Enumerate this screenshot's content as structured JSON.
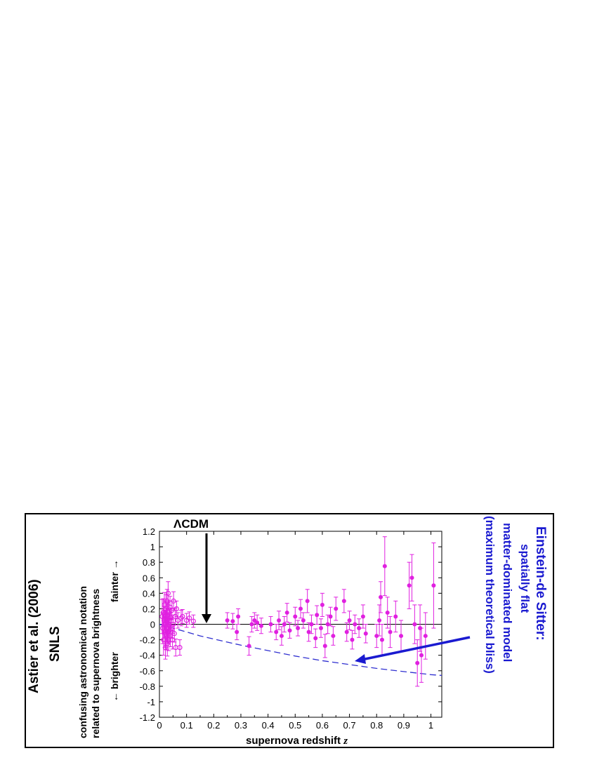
{
  "chart_data": {
    "type": "scatter",
    "title": "",
    "source_label": [
      "Astier et al. (2006)",
      "SNLS"
    ],
    "ylabel_lines": [
      "confusing astronomical notation",
      "related to supernova brightness"
    ],
    "y_direction_labels": {
      "fainter": "fainter →",
      "brighter": "← brighter"
    },
    "xlabel_prefix": "supernova redshift ",
    "xlabel_var": "z",
    "xlim": [
      0,
      1.04
    ],
    "ylim": [
      -1.2,
      1.2
    ],
    "x_ticks": [
      0,
      0.1,
      0.2,
      0.3,
      0.4,
      0.5,
      0.6,
      0.7,
      0.8,
      0.9,
      1
    ],
    "x_tick_labels": [
      "0",
      "0.1",
      "0.2",
      "0.3",
      "0.4",
      "0.5",
      "0.6",
      "0.7",
      "0.8",
      "0.9",
      "1"
    ],
    "y_ticks": [
      1.2,
      1,
      0.8,
      0.6,
      0.4,
      0.2,
      0,
      -0.2,
      -0.4,
      -0.6,
      -0.8,
      -1,
      -1.2
    ],
    "y_tick_labels": [
      "1.2",
      "1",
      "0.8",
      "0.6",
      "0.4",
      "0.2",
      "0",
      "-0.2",
      "-0.4",
      "-0.6",
      "-0.8",
      "-1",
      "-1.2"
    ],
    "grid": false,
    "colors": {
      "points": "#e020e0",
      "model_line": "#3030d0",
      "annotation_blue": "#1a1ad0",
      "annotation_black": "#000000"
    },
    "series": [
      {
        "marker": "open-circle",
        "points": [
          {
            "x": 0.01,
            "y": 0.1,
            "err": 0.22
          },
          {
            "x": 0.012,
            "y": -0.05,
            "err": 0.2
          },
          {
            "x": 0.014,
            "y": 0.15,
            "err": 0.18
          },
          {
            "x": 0.015,
            "y": -0.2,
            "err": 0.2
          },
          {
            "x": 0.017,
            "y": 0.05,
            "err": 0.18
          },
          {
            "x": 0.018,
            "y": 0.25,
            "err": 0.16
          },
          {
            "x": 0.02,
            "y": -0.1,
            "err": 0.2
          },
          {
            "x": 0.021,
            "y": 0.0,
            "err": 0.18
          },
          {
            "x": 0.022,
            "y": -0.3,
            "err": 0.15
          },
          {
            "x": 0.023,
            "y": 0.1,
            "err": 0.2
          },
          {
            "x": 0.024,
            "y": 0.2,
            "err": 0.18
          },
          {
            "x": 0.025,
            "y": -0.15,
            "err": 0.18
          },
          {
            "x": 0.026,
            "y": 0.05,
            "err": 0.16
          },
          {
            "x": 0.027,
            "y": -0.05,
            "err": 0.18
          },
          {
            "x": 0.028,
            "y": 0.3,
            "err": 0.15
          },
          {
            "x": 0.029,
            "y": -0.25,
            "err": 0.16
          },
          {
            "x": 0.03,
            "y": 0.12,
            "err": 0.16
          },
          {
            "x": 0.031,
            "y": -0.1,
            "err": 0.15
          },
          {
            "x": 0.032,
            "y": 0.4,
            "err": 0.15
          },
          {
            "x": 0.033,
            "y": 0.0,
            "err": 0.15
          },
          {
            "x": 0.034,
            "y": -0.2,
            "err": 0.14
          },
          {
            "x": 0.035,
            "y": 0.15,
            "err": 0.15
          },
          {
            "x": 0.036,
            "y": 0.05,
            "err": 0.14
          },
          {
            "x": 0.037,
            "y": -0.08,
            "err": 0.15
          },
          {
            "x": 0.039,
            "y": 0.22,
            "err": 0.14
          },
          {
            "x": 0.04,
            "y": -0.15,
            "err": 0.14
          },
          {
            "x": 0.042,
            "y": 0.08,
            "err": 0.13
          },
          {
            "x": 0.044,
            "y": -0.05,
            "err": 0.13
          },
          {
            "x": 0.046,
            "y": 0.18,
            "err": 0.12
          },
          {
            "x": 0.048,
            "y": -0.2,
            "err": 0.12
          },
          {
            "x": 0.05,
            "y": 0.0,
            "err": 0.12
          },
          {
            "x": 0.052,
            "y": 0.3,
            "err": 0.12
          },
          {
            "x": 0.055,
            "y": -0.12,
            "err": 0.11
          },
          {
            "x": 0.058,
            "y": 0.1,
            "err": 0.11
          },
          {
            "x": 0.06,
            "y": -0.3,
            "err": 0.11
          },
          {
            "x": 0.063,
            "y": 0.2,
            "err": 0.1
          },
          {
            "x": 0.068,
            "y": 0.05,
            "err": 0.1
          },
          {
            "x": 0.075,
            "y": -0.3,
            "err": 0.1
          },
          {
            "x": 0.08,
            "y": 0.08,
            "err": 0.1
          },
          {
            "x": 0.085,
            "y": 0.1,
            "err": 0.09
          },
          {
            "x": 0.1,
            "y": 0.05,
            "err": 0.09
          },
          {
            "x": 0.11,
            "y": 0.08,
            "err": 0.08
          },
          {
            "x": 0.125,
            "y": 0.04,
            "err": 0.08
          }
        ]
      },
      {
        "marker": "filled-circle",
        "points": [
          {
            "x": 0.25,
            "y": 0.05,
            "err": 0.1
          },
          {
            "x": 0.27,
            "y": 0.04,
            "err": 0.1
          },
          {
            "x": 0.285,
            "y": -0.1,
            "err": 0.1
          },
          {
            "x": 0.29,
            "y": 0.1,
            "err": 0.1
          },
          {
            "x": 0.33,
            "y": -0.28,
            "err": 0.12
          },
          {
            "x": 0.34,
            "y": 0.0,
            "err": 0.1
          },
          {
            "x": 0.35,
            "y": 0.05,
            "err": 0.1
          },
          {
            "x": 0.36,
            "y": 0.02,
            "err": 0.1
          },
          {
            "x": 0.375,
            "y": -0.02,
            "err": 0.1
          },
          {
            "x": 0.41,
            "y": 0.0,
            "err": 0.1
          },
          {
            "x": 0.43,
            "y": -0.1,
            "err": 0.1
          },
          {
            "x": 0.44,
            "y": 0.05,
            "err": 0.12
          },
          {
            "x": 0.45,
            "y": -0.15,
            "err": 0.12
          },
          {
            "x": 0.46,
            "y": 0.0,
            "err": 0.1
          },
          {
            "x": 0.47,
            "y": 0.15,
            "err": 0.12
          },
          {
            "x": 0.48,
            "y": -0.08,
            "err": 0.1
          },
          {
            "x": 0.5,
            "y": 0.1,
            "err": 0.12
          },
          {
            "x": 0.51,
            "y": -0.05,
            "err": 0.1
          },
          {
            "x": 0.52,
            "y": 0.2,
            "err": 0.12
          },
          {
            "x": 0.53,
            "y": 0.05,
            "err": 0.1
          },
          {
            "x": 0.545,
            "y": 0.3,
            "err": 0.15
          },
          {
            "x": 0.55,
            "y": -0.1,
            "err": 0.12
          },
          {
            "x": 0.56,
            "y": 0.0,
            "err": 0.12
          },
          {
            "x": 0.575,
            "y": -0.18,
            "err": 0.12
          },
          {
            "x": 0.58,
            "y": 0.12,
            "err": 0.12
          },
          {
            "x": 0.595,
            "y": -0.05,
            "err": 0.12
          },
          {
            "x": 0.6,
            "y": 0.25,
            "err": 0.15
          },
          {
            "x": 0.61,
            "y": -0.28,
            "err": 0.15
          },
          {
            "x": 0.62,
            "y": 0.0,
            "err": 0.12
          },
          {
            "x": 0.63,
            "y": 0.1,
            "err": 0.12
          },
          {
            "x": 0.64,
            "y": -0.15,
            "err": 0.12
          },
          {
            "x": 0.65,
            "y": 0.2,
            "err": 0.15
          },
          {
            "x": 0.68,
            "y": 0.3,
            "err": 0.15
          },
          {
            "x": 0.69,
            "y": -0.1,
            "err": 0.12
          },
          {
            "x": 0.7,
            "y": 0.05,
            "err": 0.12
          },
          {
            "x": 0.71,
            "y": -0.2,
            "err": 0.12
          },
          {
            "x": 0.72,
            "y": 0.0,
            "err": 0.12
          },
          {
            "x": 0.735,
            "y": -0.05,
            "err": 0.12
          },
          {
            "x": 0.75,
            "y": 0.1,
            "err": 0.15
          },
          {
            "x": 0.76,
            "y": -0.12,
            "err": 0.12
          },
          {
            "x": 0.8,
            "y": -0.15,
            "err": 0.15
          },
          {
            "x": 0.81,
            "y": 0.05,
            "err": 0.2
          },
          {
            "x": 0.815,
            "y": 0.35,
            "err": 0.2
          },
          {
            "x": 0.82,
            "y": -0.2,
            "err": 0.2
          },
          {
            "x": 0.83,
            "y": 0.75,
            "err": 0.38
          },
          {
            "x": 0.84,
            "y": 0.15,
            "err": 0.2
          },
          {
            "x": 0.85,
            "y": -0.1,
            "err": 0.2
          },
          {
            "x": 0.87,
            "y": 0.1,
            "err": 0.2
          },
          {
            "x": 0.89,
            "y": -0.15,
            "err": 0.2
          },
          {
            "x": 0.92,
            "y": 0.5,
            "err": 0.3
          },
          {
            "x": 0.93,
            "y": 0.6,
            "err": 0.3
          },
          {
            "x": 0.94,
            "y": 0.0,
            "err": 0.25
          },
          {
            "x": 0.95,
            "y": -0.5,
            "err": 0.3
          },
          {
            "x": 0.96,
            "y": -0.05,
            "err": 0.3
          },
          {
            "x": 0.965,
            "y": -0.4,
            "err": 0.35
          },
          {
            "x": 0.98,
            "y": -0.15,
            "err": 0.3
          },
          {
            "x": 1.01,
            "y": 0.5,
            "err": 0.55
          }
        ]
      }
    ],
    "model_curve": {
      "style": "dashed",
      "x": [
        0,
        0.05,
        0.1,
        0.15,
        0.2,
        0.3,
        0.4,
        0.5,
        0.6,
        0.7,
        0.8,
        0.9,
        1.0,
        1.04
      ],
      "y": [
        0,
        -0.05,
        -0.1,
        -0.15,
        -0.19,
        -0.27,
        -0.34,
        -0.41,
        -0.47,
        -0.52,
        -0.57,
        -0.61,
        -0.65,
        -0.66
      ]
    },
    "zero_line": 0,
    "annotations": {
      "lcdm": "ΛCDM",
      "eds": [
        "Einstein-de Sitter:",
        "spatially flat",
        "matter-dominated model",
        "(maximum theoretical bliss)"
      ]
    }
  }
}
